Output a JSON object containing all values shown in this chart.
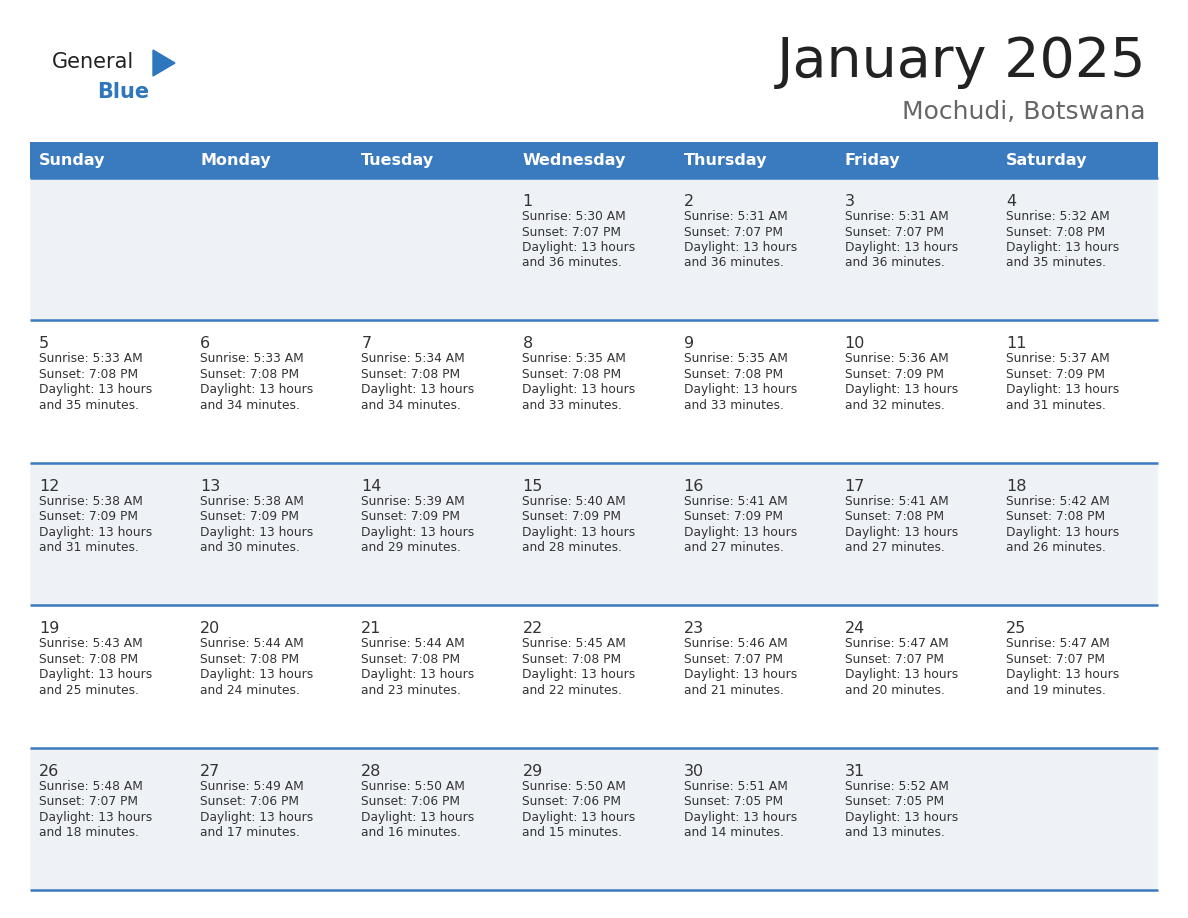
{
  "title": "January 2025",
  "subtitle": "Mochudi, Botswana",
  "days_of_week": [
    "Sunday",
    "Monday",
    "Tuesday",
    "Wednesday",
    "Thursday",
    "Friday",
    "Saturday"
  ],
  "header_bg": "#3a7abf",
  "header_text_color": "#ffffff",
  "row_bg_light": "#eef2f7",
  "row_bg_white": "#ffffff",
  "cell_text_color": "#333333",
  "day_num_color": "#333333",
  "divider_color": "#3a7abf",
  "title_color": "#222222",
  "subtitle_color": "#666666",
  "logo_general_color": "#222222",
  "logo_blue_color": "#2e77bc",
  "logo_triangle_color": "#2e77bc",
  "calendar": [
    [
      {
        "day": null,
        "info": ""
      },
      {
        "day": null,
        "info": ""
      },
      {
        "day": null,
        "info": ""
      },
      {
        "day": 1,
        "sunrise": "5:30 AM",
        "sunset": "7:07 PM",
        "daylight": "13 hours and 36 minutes."
      },
      {
        "day": 2,
        "sunrise": "5:31 AM",
        "sunset": "7:07 PM",
        "daylight": "13 hours and 36 minutes."
      },
      {
        "day": 3,
        "sunrise": "5:31 AM",
        "sunset": "7:07 PM",
        "daylight": "13 hours and 36 minutes."
      },
      {
        "day": 4,
        "sunrise": "5:32 AM",
        "sunset": "7:08 PM",
        "daylight": "13 hours and 35 minutes."
      }
    ],
    [
      {
        "day": 5,
        "sunrise": "5:33 AM",
        "sunset": "7:08 PM",
        "daylight": "13 hours and 35 minutes."
      },
      {
        "day": 6,
        "sunrise": "5:33 AM",
        "sunset": "7:08 PM",
        "daylight": "13 hours and 34 minutes."
      },
      {
        "day": 7,
        "sunrise": "5:34 AM",
        "sunset": "7:08 PM",
        "daylight": "13 hours and 34 minutes."
      },
      {
        "day": 8,
        "sunrise": "5:35 AM",
        "sunset": "7:08 PM",
        "daylight": "13 hours and 33 minutes."
      },
      {
        "day": 9,
        "sunrise": "5:35 AM",
        "sunset": "7:08 PM",
        "daylight": "13 hours and 33 minutes."
      },
      {
        "day": 10,
        "sunrise": "5:36 AM",
        "sunset": "7:09 PM",
        "daylight": "13 hours and 32 minutes."
      },
      {
        "day": 11,
        "sunrise": "5:37 AM",
        "sunset": "7:09 PM",
        "daylight": "13 hours and 31 minutes."
      }
    ],
    [
      {
        "day": 12,
        "sunrise": "5:38 AM",
        "sunset": "7:09 PM",
        "daylight": "13 hours and 31 minutes."
      },
      {
        "day": 13,
        "sunrise": "5:38 AM",
        "sunset": "7:09 PM",
        "daylight": "13 hours and 30 minutes."
      },
      {
        "day": 14,
        "sunrise": "5:39 AM",
        "sunset": "7:09 PM",
        "daylight": "13 hours and 29 minutes."
      },
      {
        "day": 15,
        "sunrise": "5:40 AM",
        "sunset": "7:09 PM",
        "daylight": "13 hours and 28 minutes."
      },
      {
        "day": 16,
        "sunrise": "5:41 AM",
        "sunset": "7:09 PM",
        "daylight": "13 hours and 27 minutes."
      },
      {
        "day": 17,
        "sunrise": "5:41 AM",
        "sunset": "7:08 PM",
        "daylight": "13 hours and 27 minutes."
      },
      {
        "day": 18,
        "sunrise": "5:42 AM",
        "sunset": "7:08 PM",
        "daylight": "13 hours and 26 minutes."
      }
    ],
    [
      {
        "day": 19,
        "sunrise": "5:43 AM",
        "sunset": "7:08 PM",
        "daylight": "13 hours and 25 minutes."
      },
      {
        "day": 20,
        "sunrise": "5:44 AM",
        "sunset": "7:08 PM",
        "daylight": "13 hours and 24 minutes."
      },
      {
        "day": 21,
        "sunrise": "5:44 AM",
        "sunset": "7:08 PM",
        "daylight": "13 hours and 23 minutes."
      },
      {
        "day": 22,
        "sunrise": "5:45 AM",
        "sunset": "7:08 PM",
        "daylight": "13 hours and 22 minutes."
      },
      {
        "day": 23,
        "sunrise": "5:46 AM",
        "sunset": "7:07 PM",
        "daylight": "13 hours and 21 minutes."
      },
      {
        "day": 24,
        "sunrise": "5:47 AM",
        "sunset": "7:07 PM",
        "daylight": "13 hours and 20 minutes."
      },
      {
        "day": 25,
        "sunrise": "5:47 AM",
        "sunset": "7:07 PM",
        "daylight": "13 hours and 19 minutes."
      }
    ],
    [
      {
        "day": 26,
        "sunrise": "5:48 AM",
        "sunset": "7:07 PM",
        "daylight": "13 hours and 18 minutes."
      },
      {
        "day": 27,
        "sunrise": "5:49 AM",
        "sunset": "7:06 PM",
        "daylight": "13 hours and 17 minutes."
      },
      {
        "day": 28,
        "sunrise": "5:50 AM",
        "sunset": "7:06 PM",
        "daylight": "13 hours and 16 minutes."
      },
      {
        "day": 29,
        "sunrise": "5:50 AM",
        "sunset": "7:06 PM",
        "daylight": "13 hours and 15 minutes."
      },
      {
        "day": 30,
        "sunrise": "5:51 AM",
        "sunset": "7:05 PM",
        "daylight": "13 hours and 14 minutes."
      },
      {
        "day": 31,
        "sunrise": "5:52 AM",
        "sunset": "7:05 PM",
        "daylight": "13 hours and 13 minutes."
      },
      {
        "day": null,
        "info": ""
      }
    ]
  ]
}
